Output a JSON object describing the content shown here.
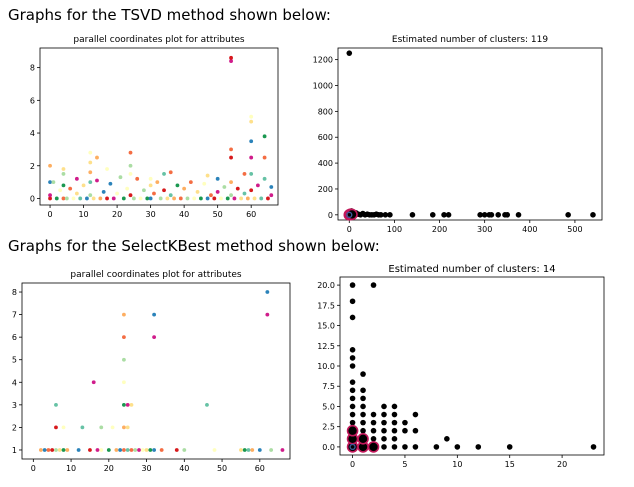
{
  "sections": {
    "tsvd_title": "Graphs for the TSVD method shown below:",
    "selectkbest_title": "Graphs for the SelectKBest method shown below:"
  },
  "colors": {
    "palette": [
      "#d7191c",
      "#fdae61",
      "#fee08b",
      "#abdda4",
      "#2b83ba",
      "#1a9850",
      "#d01c8b",
      "#f46d43",
      "#66c2a5",
      "#ffffbf"
    ],
    "cluster_points": "#000000",
    "centroid_outline": "#c2185b",
    "centroid_inner": "#3b5b9a"
  },
  "chart_data": [
    {
      "id": "tsvd-parallel",
      "type": "scatter",
      "title": "parallel coordinates plot for attributes",
      "xlim": [
        -3,
        68
      ],
      "ylim": [
        -0.4,
        9.2
      ],
      "xticks": [
        0,
        10,
        20,
        30,
        40,
        50,
        60
      ],
      "yticks": [
        0,
        2,
        4,
        6,
        8
      ],
      "grid": false,
      "points": [
        [
          0,
          0
        ],
        [
          0,
          1
        ],
        [
          0,
          0.2
        ],
        [
          0,
          2
        ],
        [
          1,
          1
        ],
        [
          2,
          0
        ],
        [
          3,
          0.5
        ],
        [
          4,
          1.5
        ],
        [
          4,
          0.8
        ],
        [
          4,
          0
        ],
        [
          4,
          1.8
        ],
        [
          5,
          0
        ],
        [
          6,
          0.6
        ],
        [
          7,
          0
        ],
        [
          8,
          0.3
        ],
        [
          8,
          1.2
        ],
        [
          9,
          0
        ],
        [
          10,
          0.8
        ],
        [
          11,
          0
        ],
        [
          12,
          1
        ],
        [
          12,
          2.2
        ],
        [
          12,
          0.2
        ],
        [
          12,
          2.8
        ],
        [
          12,
          1.6
        ],
        [
          13,
          0
        ],
        [
          14,
          1.1
        ],
        [
          14,
          2.5
        ],
        [
          15,
          0
        ],
        [
          16,
          0.4
        ],
        [
          17,
          1.8
        ],
        [
          17,
          0
        ],
        [
          18,
          0.9
        ],
        [
          19,
          0
        ],
        [
          20,
          0.3
        ],
        [
          21,
          1.3
        ],
        [
          22,
          0
        ],
        [
          23,
          0.6
        ],
        [
          24,
          2
        ],
        [
          24,
          2.8
        ],
        [
          24,
          1.5
        ],
        [
          24,
          0.2
        ],
        [
          25,
          0
        ],
        [
          26,
          1.2
        ],
        [
          27,
          0
        ],
        [
          28,
          0.5
        ],
        [
          29,
          0
        ],
        [
          30,
          1.2
        ],
        [
          30,
          0.8
        ],
        [
          30,
          0
        ],
        [
          31,
          0.3
        ],
        [
          32,
          1
        ],
        [
          33,
          0
        ],
        [
          34,
          1.5
        ],
        [
          34,
          0.5
        ],
        [
          35,
          0
        ],
        [
          36,
          1.6
        ],
        [
          36,
          0.2
        ],
        [
          37,
          0
        ],
        [
          38,
          0.8
        ],
        [
          39,
          0
        ],
        [
          40,
          0.6
        ],
        [
          41,
          0
        ],
        [
          42,
          1
        ],
        [
          43,
          0
        ],
        [
          44,
          0.4
        ],
        [
          45,
          0
        ],
        [
          46,
          0.9
        ],
        [
          47,
          1.4
        ],
        [
          47,
          0
        ],
        [
          48,
          0.2
        ],
        [
          49,
          0
        ],
        [
          50,
          1.2
        ],
        [
          50,
          0.4
        ],
        [
          51,
          0
        ],
        [
          52,
          0.7
        ],
        [
          53,
          0
        ],
        [
          54,
          8.4
        ],
        [
          54,
          8.6
        ],
        [
          54,
          3
        ],
        [
          54,
          2.5
        ],
        [
          54,
          1
        ],
        [
          54,
          0.2
        ],
        [
          55,
          0
        ],
        [
          56,
          0.6
        ],
        [
          57,
          0
        ],
        [
          58,
          1.5
        ],
        [
          58,
          0.3
        ],
        [
          59,
          0
        ],
        [
          60,
          5
        ],
        [
          60,
          4.7
        ],
        [
          60,
          3.5
        ],
        [
          60,
          2.5
        ],
        [
          60,
          1.5
        ],
        [
          60,
          0.5
        ],
        [
          61,
          0
        ],
        [
          62,
          0.8
        ],
        [
          63,
          0
        ],
        [
          64,
          3.8
        ],
        [
          64,
          2.5
        ],
        [
          64,
          1.2
        ],
        [
          65,
          0
        ],
        [
          66,
          0.7
        ],
        [
          66,
          0.2
        ]
      ]
    },
    {
      "id": "tsvd-clusters",
      "type": "scatter",
      "title": "Estimated number of clusters: 119",
      "xlim": [
        -25,
        560
      ],
      "ylim": [
        -40,
        1290
      ],
      "xticks": [
        0,
        100,
        200,
        300,
        400,
        500
      ],
      "yticks": [
        0,
        200,
        400,
        600,
        800,
        1000,
        1200
      ],
      "grid": false,
      "points": [
        [
          0,
          1250
        ],
        [
          0,
          0
        ],
        [
          2,
          10
        ],
        [
          5,
          30
        ],
        [
          8,
          20
        ],
        [
          10,
          0
        ],
        [
          12,
          5
        ],
        [
          15,
          15
        ],
        [
          20,
          5
        ],
        [
          25,
          0
        ],
        [
          30,
          10
        ],
        [
          35,
          0
        ],
        [
          40,
          5
        ],
        [
          45,
          0
        ],
        [
          50,
          0
        ],
        [
          55,
          0
        ],
        [
          60,
          5
        ],
        [
          65,
          0
        ],
        [
          70,
          0
        ],
        [
          80,
          0
        ],
        [
          90,
          0
        ],
        [
          140,
          0
        ],
        [
          185,
          0
        ],
        [
          210,
          0
        ],
        [
          220,
          0
        ],
        [
          290,
          0
        ],
        [
          300,
          0
        ],
        [
          310,
          0
        ],
        [
          315,
          0
        ],
        [
          330,
          0
        ],
        [
          345,
          0
        ],
        [
          350,
          0
        ],
        [
          375,
          0
        ],
        [
          485,
          0
        ],
        [
          540,
          0
        ]
      ],
      "centroids": [
        [
          0,
          0
        ],
        [
          3,
          5
        ],
        [
          6,
          3
        ]
      ]
    },
    {
      "id": "skb-parallel",
      "type": "scatter",
      "title": "parallel coordinates plot for attributes",
      "xlim": [
        -3,
        68
      ],
      "ylim": [
        0.6,
        8.4
      ],
      "xticks": [
        0,
        10,
        20,
        30,
        40,
        50,
        60
      ],
      "yticks": [
        1,
        2,
        3,
        4,
        5,
        6,
        7,
        8
      ],
      "grid": false,
      "points": [
        [
          2,
          1
        ],
        [
          3,
          1
        ],
        [
          4,
          1
        ],
        [
          5,
          1
        ],
        [
          6,
          1
        ],
        [
          6,
          3
        ],
        [
          6,
          2
        ],
        [
          7,
          1
        ],
        [
          8,
          1
        ],
        [
          8,
          2
        ],
        [
          9,
          1
        ],
        [
          12,
          1
        ],
        [
          13,
          2
        ],
        [
          15,
          1
        ],
        [
          16,
          4
        ],
        [
          17,
          1
        ],
        [
          18,
          1
        ],
        [
          18,
          2
        ],
        [
          20,
          1
        ],
        [
          21,
          2
        ],
        [
          22,
          1
        ],
        [
          23,
          1
        ],
        [
          24,
          1
        ],
        [
          24,
          2
        ],
        [
          24,
          3
        ],
        [
          24,
          4
        ],
        [
          24,
          5
        ],
        [
          24,
          6
        ],
        [
          24,
          7
        ],
        [
          25,
          1
        ],
        [
          25,
          2
        ],
        [
          25,
          3
        ],
        [
          26,
          1
        ],
        [
          26,
          3
        ],
        [
          27,
          1
        ],
        [
          28,
          1
        ],
        [
          29,
          1
        ],
        [
          30,
          1
        ],
        [
          31,
          1
        ],
        [
          32,
          7
        ],
        [
          32,
          6
        ],
        [
          32,
          1
        ],
        [
          34,
          1
        ],
        [
          38,
          1
        ],
        [
          40,
          1
        ],
        [
          46,
          3
        ],
        [
          48,
          1
        ],
        [
          55,
          1
        ],
        [
          56,
          1
        ],
        [
          57,
          1
        ],
        [
          58,
          1
        ],
        [
          60,
          1
        ],
        [
          62,
          8
        ],
        [
          62,
          7
        ],
        [
          63,
          1
        ],
        [
          66,
          1
        ]
      ]
    },
    {
      "id": "skb-clusters",
      "type": "scatter",
      "title": "Estimated number of clusters: 14",
      "xlim": [
        -1.2,
        24
      ],
      "ylim": [
        -1,
        21
      ],
      "xticks": [
        0,
        5,
        10,
        15,
        20
      ],
      "yticks": [
        0.0,
        2.5,
        5.0,
        7.5,
        10.0,
        12.5,
        15.0,
        17.5,
        20.0
      ],
      "grid": false,
      "points": [
        [
          0,
          0
        ],
        [
          0,
          1
        ],
        [
          0,
          2
        ],
        [
          0,
          3
        ],
        [
          0,
          4
        ],
        [
          0,
          5
        ],
        [
          0,
          6
        ],
        [
          0,
          7
        ],
        [
          0,
          8
        ],
        [
          0,
          10
        ],
        [
          0,
          11
        ],
        [
          0,
          12
        ],
        [
          0,
          16
        ],
        [
          0,
          18
        ],
        [
          0,
          20
        ],
        [
          1,
          0
        ],
        [
          1,
          1
        ],
        [
          1,
          2
        ],
        [
          1,
          3
        ],
        [
          1,
          4
        ],
        [
          1,
          5
        ],
        [
          1,
          6
        ],
        [
          1,
          7
        ],
        [
          1,
          9
        ],
        [
          2,
          0
        ],
        [
          2,
          1
        ],
        [
          2,
          2
        ],
        [
          2,
          3
        ],
        [
          2,
          4
        ],
        [
          2,
          20
        ],
        [
          3,
          0
        ],
        [
          3,
          1
        ],
        [
          3,
          2
        ],
        [
          3,
          3
        ],
        [
          3,
          4
        ],
        [
          3,
          5
        ],
        [
          4,
          0
        ],
        [
          4,
          1
        ],
        [
          4,
          2
        ],
        [
          4,
          3
        ],
        [
          4,
          4
        ],
        [
          4,
          5
        ],
        [
          5,
          0
        ],
        [
          5,
          2
        ],
        [
          5,
          3
        ],
        [
          6,
          0
        ],
        [
          6,
          2
        ],
        [
          6,
          4
        ],
        [
          8,
          0
        ],
        [
          9,
          1
        ],
        [
          10,
          0
        ],
        [
          12,
          0
        ],
        [
          15,
          0
        ],
        [
          23,
          0
        ]
      ],
      "centroids": [
        [
          0,
          0
        ],
        [
          0,
          1
        ],
        [
          0,
          2
        ],
        [
          1,
          0
        ],
        [
          1,
          1
        ],
        [
          2,
          0
        ]
      ]
    }
  ]
}
